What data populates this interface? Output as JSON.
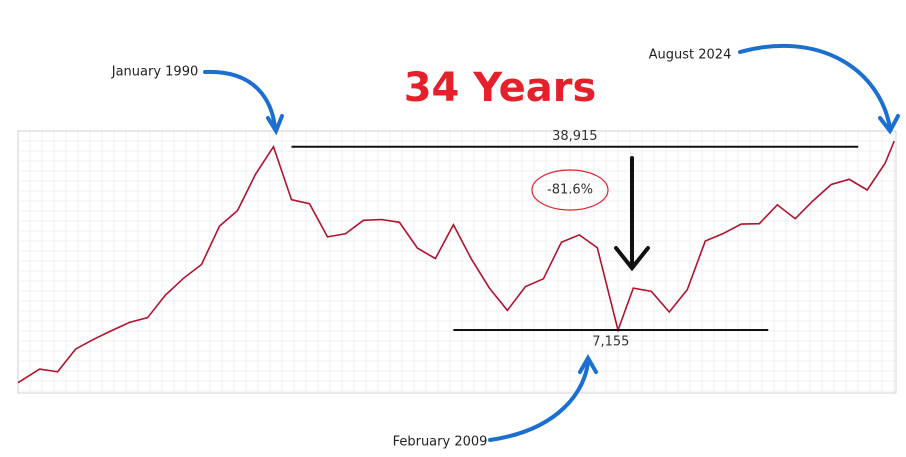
{
  "chart_data": {
    "type": "line",
    "title": "34 Years",
    "x": [
      1975.8,
      1977.0,
      1978.0,
      1979.0,
      1980.0,
      1981.0,
      1982.0,
      1983.0,
      1984.0,
      1985.0,
      1986.0,
      1987.0,
      1988.0,
      1989.0,
      1990.0,
      1991.0,
      1992.0,
      1993.0,
      1994.0,
      1995.0,
      1996.0,
      1997.0,
      1998.0,
      1999.0,
      2000.0,
      2001.0,
      2002.0,
      2003.0,
      2004.0,
      2005.0,
      2006.0,
      2007.0,
      2008.0,
      2009.15,
      2010.0,
      2011.0,
      2012.0,
      2013.0,
      2014.0,
      2015.0,
      2016.0,
      2017.0,
      2018.0,
      2019.0,
      2020.0,
      2021.0,
      2022.0,
      2023.0,
      2024.0,
      2024.5
    ],
    "values": [
      4400,
      4990,
      4866,
      6001,
      6569,
      7116,
      7682,
      8017,
      9894,
      11543,
      13113,
      18701,
      21564,
      30159,
      38915,
      23849,
      22984,
      16925,
      17417,
      19723,
      19868,
      19361,
      15259,
      13842,
      18934,
      13786,
      10543,
      8579,
      10677,
      11489,
      16111,
      17226,
      15308,
      7155,
      10546,
      10229,
      8455,
      10395,
      16291,
      17451,
      19034,
      19114,
      22765,
      20015,
      23657,
      27444,
      28792,
      26095,
      33464,
      41000
    ],
    "color": "#b0142e",
    "log_y": true,
    "xlim": [
      1975.8,
      2024.6
    ],
    "ylim": [
      4000,
      45000
    ],
    "reference_lines": [
      {
        "value": 38915,
        "label": "38,915",
        "from": 1991.0,
        "to": 2022.5
      },
      {
        "value": 7155,
        "label": "7,155",
        "from": 2000.0,
        "to": 2017.5
      }
    ],
    "annotations": {
      "peak": "January 1990",
      "trough": "February 2009",
      "latest": "August 2024",
      "drop": "-81.6%"
    }
  }
}
